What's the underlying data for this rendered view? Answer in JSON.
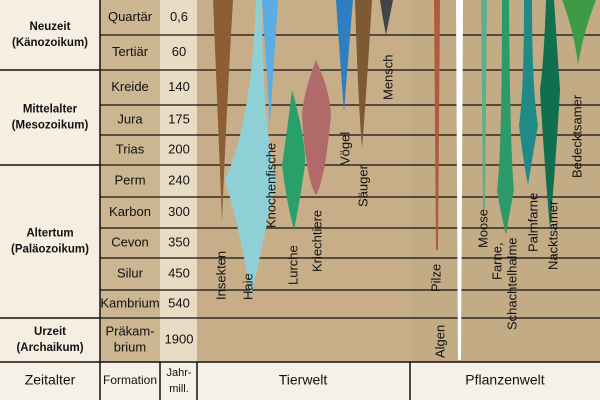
{
  "eras": [
    {
      "name": "Neuzeit",
      "subtitle": "(Känozoikum)"
    },
    {
      "name": "Mittelalter",
      "subtitle": "(Mesozoikum)"
    },
    {
      "name": "Altertum",
      "subtitle": "(Paläozoikum)"
    },
    {
      "name": "Urzeit",
      "subtitle": "(Archaikum)"
    }
  ],
  "formations": [
    {
      "name": "Quartär",
      "age": "0,6"
    },
    {
      "name": "Tertiär",
      "age": "60"
    },
    {
      "name": "Kreide",
      "age": "140"
    },
    {
      "name": "Jura",
      "age": "175"
    },
    {
      "name": "Trias",
      "age": "200"
    },
    {
      "name": "Perm",
      "age": "240"
    },
    {
      "name": "Karbon",
      "age": "300"
    },
    {
      "name": "Cevon",
      "age": "350"
    },
    {
      "name": "Silur",
      "age": "450"
    },
    {
      "name": "Kambrium",
      "age": "540"
    },
    {
      "name_lines": [
        "Präkam-",
        "brium"
      ],
      "age": "1900"
    }
  ],
  "header": {
    "era": "Zeitalter",
    "formation": "Formation",
    "years": [
      "Jahr-",
      "mill."
    ],
    "animals": "Tierwelt",
    "plants": "Pflanzenwelt"
  },
  "animals": [
    "Insekten",
    "Haie",
    "Knochenfische",
    "Lurche",
    "Kriechtiere",
    "Vögel",
    "Säuger",
    "Mensch"
  ],
  "plants": [
    "Pilze",
    "Algen",
    "Moose",
    [
      "Farne,",
      "Schachtelhalme"
    ],
    "Palmfarne",
    "Nacktsamer",
    "Bedecktsamer"
  ]
}
